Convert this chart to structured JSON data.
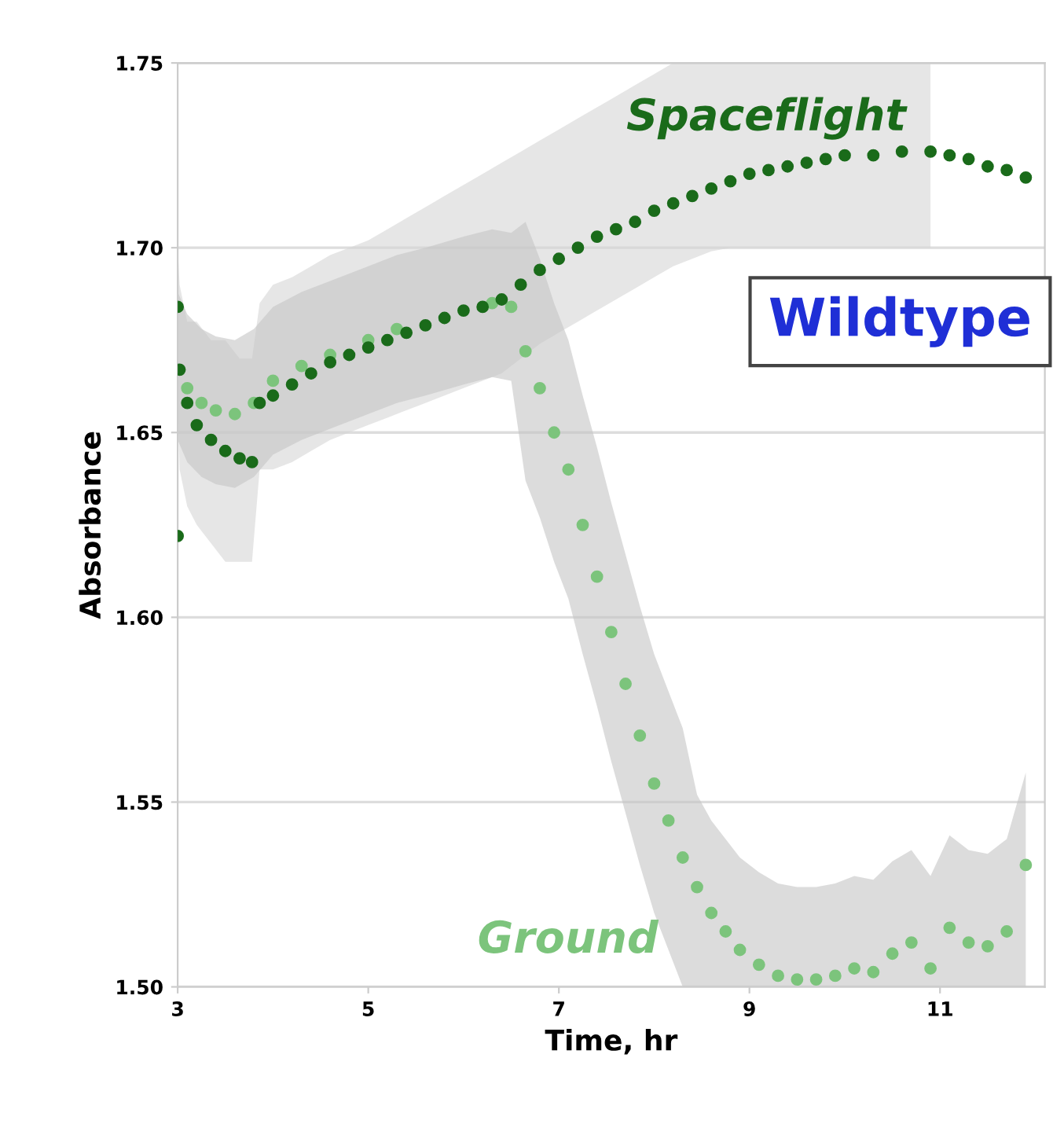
{
  "chart_data": {
    "type": "scatter",
    "xlabel": "Time, hr",
    "ylabel": "Absorbance",
    "annotations": [
      "Wildtype"
    ],
    "xlim": [
      3,
      12.1
    ],
    "xticks": [
      3,
      5,
      7,
      9,
      11
    ],
    "ylim": [
      1.5,
      1.75
    ],
    "yticks": [
      {
        "value": 1.5,
        "label": "1.50"
      },
      {
        "value": 1.55,
        "label": "1.55"
      },
      {
        "value": 1.6,
        "label": "1.60"
      },
      {
        "value": 1.65,
        "label": "1.65"
      },
      {
        "value": 1.7,
        "label": "1.70"
      },
      {
        "value": 1.75,
        "label": "1.75"
      }
    ],
    "grid": "y",
    "marker": "circle",
    "series": [
      {
        "name": "Spaceflight",
        "color": "#1a6b1a",
        "x": [
          3.0,
          3.0,
          3.02,
          3.1,
          3.2,
          3.35,
          3.5,
          3.65,
          3.78,
          3.86,
          4.0,
          4.2,
          4.4,
          4.6,
          4.8,
          5.0,
          5.2,
          5.4,
          5.6,
          5.8,
          6.0,
          6.2,
          6.4,
          6.6,
          6.8,
          7.0,
          7.2,
          7.4,
          7.6,
          7.8,
          8.0,
          8.2,
          8.4,
          8.6,
          8.8,
          9.0,
          9.2,
          9.4,
          9.6,
          9.8,
          10.0,
          10.3,
          10.6,
          10.9,
          11.1,
          11.3,
          11.5,
          11.7,
          11.9
        ],
        "values": [
          1.622,
          1.684,
          1.667,
          1.658,
          1.652,
          1.648,
          1.645,
          1.643,
          1.642,
          1.658,
          1.66,
          1.663,
          1.666,
          1.669,
          1.671,
          1.673,
          1.675,
          1.677,
          1.679,
          1.681,
          1.683,
          1.684,
          1.686,
          1.69,
          1.694,
          1.697,
          1.7,
          1.703,
          1.705,
          1.707,
          1.71,
          1.712,
          1.714,
          1.716,
          1.718,
          1.72,
          1.721,
          1.722,
          1.723,
          1.724,
          1.725,
          1.725,
          1.726,
          1.726,
          1.725,
          1.724,
          1.722,
          1.721,
          1.719
        ],
        "lower": [
          1.61,
          1.66,
          1.64,
          1.63,
          1.625,
          1.62,
          1.615,
          1.615,
          1.615,
          1.64,
          1.64,
          1.642,
          1.645,
          1.648,
          1.65,
          1.652,
          1.654,
          1.656,
          1.658,
          1.66,
          1.662,
          1.664,
          1.666,
          1.67,
          1.674,
          1.677,
          1.68,
          1.683,
          1.686,
          1.689,
          1.692,
          1.695,
          1.697,
          1.699,
          1.7,
          1.7,
          1.7,
          1.7,
          1.7,
          1.7,
          1.7,
          1.7,
          1.7,
          1.7,
          null,
          null,
          null,
          null,
          null
        ],
        "upper": [
          1.64,
          1.7,
          1.69,
          1.68,
          1.68,
          1.675,
          1.675,
          1.67,
          1.67,
          1.685,
          1.69,
          1.692,
          1.695,
          1.698,
          1.7,
          1.702,
          1.705,
          1.708,
          1.711,
          1.714,
          1.717,
          1.72,
          1.723,
          1.726,
          1.729,
          1.732,
          1.735,
          1.738,
          1.741,
          1.744,
          1.747,
          1.75,
          1.75,
          1.75,
          1.75,
          1.75,
          1.75,
          1.75,
          1.75,
          1.75,
          1.75,
          1.75,
          1.75,
          1.75,
          null,
          null,
          null,
          null,
          null
        ]
      },
      {
        "name": "Ground",
        "color": "#7cc47c",
        "x": [
          3.0,
          3.1,
          3.25,
          3.4,
          3.6,
          3.8,
          4.0,
          4.3,
          4.6,
          5.0,
          5.3,
          5.6,
          6.0,
          6.3,
          6.5,
          6.65,
          6.8,
          6.95,
          7.1,
          7.25,
          7.4,
          7.55,
          7.7,
          7.85,
          8.0,
          8.15,
          8.3,
          8.45,
          8.6,
          8.75,
          8.9,
          9.1,
          9.3,
          9.5,
          9.7,
          9.9,
          10.1,
          10.3,
          10.5,
          10.7,
          10.9,
          11.1,
          11.3,
          11.5,
          11.7,
          11.9
        ],
        "values": [
          null,
          1.662,
          1.658,
          1.656,
          1.655,
          1.658,
          1.664,
          1.668,
          1.671,
          1.675,
          1.678,
          null,
          null,
          1.685,
          1.684,
          1.672,
          1.662,
          1.65,
          1.64,
          1.625,
          1.611,
          1.596,
          1.582,
          1.568,
          1.555,
          1.545,
          1.535,
          1.527,
          1.52,
          1.515,
          1.51,
          1.506,
          1.503,
          1.502,
          1.502,
          1.503,
          1.505,
          1.504,
          1.509,
          1.512,
          1.505,
          1.516,
          1.512,
          1.511,
          1.515,
          1.533
        ],
        "lower": [
          1.648,
          1.642,
          1.638,
          1.636,
          1.635,
          1.638,
          1.644,
          1.648,
          1.651,
          1.655,
          1.658,
          1.66,
          1.663,
          1.665,
          1.664,
          1.637,
          1.627,
          1.615,
          1.605,
          1.59,
          1.576,
          1.561,
          1.547,
          1.533,
          1.52,
          1.51,
          1.5,
          1.5,
          1.5,
          1.5,
          1.5,
          1.5,
          1.5,
          1.5,
          1.5,
          1.5,
          1.5,
          1.5,
          1.5,
          1.5,
          1.5,
          1.5,
          1.5,
          1.5,
          1.5,
          1.5
        ],
        "upper": [
          1.688,
          1.682,
          1.678,
          1.676,
          1.675,
          1.678,
          1.684,
          1.688,
          1.691,
          1.695,
          1.698,
          1.7,
          1.703,
          1.705,
          1.704,
          1.707,
          1.697,
          1.685,
          1.675,
          1.66,
          1.646,
          1.631,
          1.617,
          1.603,
          1.59,
          1.58,
          1.57,
          1.552,
          1.545,
          1.54,
          1.535,
          1.531,
          1.528,
          1.527,
          1.527,
          1.528,
          1.53,
          1.529,
          1.534,
          1.537,
          1.53,
          1.541,
          1.537,
          1.536,
          1.54,
          1.558
        ]
      }
    ]
  }
}
